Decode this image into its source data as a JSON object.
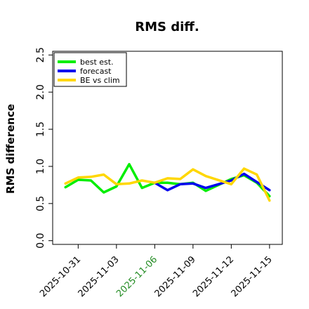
{
  "chart_data": {
    "type": "line",
    "title": "RMS diff.",
    "ylabel": "RMS difference",
    "xlabel": "",
    "ylim": [
      0,
      2.5
    ],
    "xlim": [
      "2025-10-29",
      "2025-11-16"
    ],
    "yticks": [
      "0.0",
      "0.5",
      "1.0",
      "1.5",
      "2.0",
      "2.5"
    ],
    "xticks": [
      {
        "label": "2025-10-31",
        "date": "2025-10-31",
        "color": "#000000"
      },
      {
        "label": "2025-11-03",
        "date": "2025-11-03",
        "color": "#000000"
      },
      {
        "label": "2025-11-06",
        "date": "2025-11-06",
        "color": "#228B22"
      },
      {
        "label": "2025-11-09",
        "date": "2025-11-09",
        "color": "#000000"
      },
      {
        "label": "2025-11-12",
        "date": "2025-11-12",
        "color": "#000000"
      },
      {
        "label": "2025-11-15",
        "date": "2025-11-15",
        "color": "#000000"
      }
    ],
    "grid": false,
    "legend_position": "top-left",
    "series": [
      {
        "name": "best est.",
        "color": "#00EE00",
        "points": [
          {
            "x": "2025-10-30",
            "y": 0.72
          },
          {
            "x": "2025-10-31",
            "y": 0.82
          },
          {
            "x": "2025-11-01",
            "y": 0.81
          },
          {
            "x": "2025-11-02",
            "y": 0.65
          },
          {
            "x": "2025-11-03",
            "y": 0.73
          },
          {
            "x": "2025-11-04",
            "y": 1.03
          },
          {
            "x": "2025-11-05",
            "y": 0.71
          },
          {
            "x": "2025-11-06",
            "y": 0.78
          },
          {
            "x": "2025-11-07",
            "y": 0.78
          },
          {
            "x": "2025-11-08",
            "y": 0.76
          },
          {
            "x": "2025-11-09",
            "y": 0.78
          },
          {
            "x": "2025-11-10",
            "y": 0.67
          },
          {
            "x": "2025-11-12",
            "y": 0.83
          },
          {
            "x": "2025-11-13",
            "y": 0.88
          },
          {
            "x": "2025-11-14",
            "y": 0.78
          },
          {
            "x": "2025-11-15",
            "y": 0.6
          }
        ]
      },
      {
        "name": "forecast",
        "color": "#0000EE",
        "points": [
          {
            "x": "2025-11-06",
            "y": 0.78
          },
          {
            "x": "2025-11-07",
            "y": 0.68
          },
          {
            "x": "2025-11-08",
            "y": 0.76
          },
          {
            "x": "2025-11-09",
            "y": 0.77
          },
          {
            "x": "2025-11-10",
            "y": 0.71
          },
          {
            "x": "2025-11-12",
            "y": 0.81
          },
          {
            "x": "2025-11-13",
            "y": 0.9
          },
          {
            "x": "2025-11-14",
            "y": 0.79
          },
          {
            "x": "2025-11-15",
            "y": 0.68
          }
        ]
      },
      {
        "name": "BE vs clim",
        "color": "#FFD700",
        "points": [
          {
            "x": "2025-10-30",
            "y": 0.77
          },
          {
            "x": "2025-10-31",
            "y": 0.85
          },
          {
            "x": "2025-11-01",
            "y": 0.86
          },
          {
            "x": "2025-11-02",
            "y": 0.89
          },
          {
            "x": "2025-11-03",
            "y": 0.76
          },
          {
            "x": "2025-11-04",
            "y": 0.77
          },
          {
            "x": "2025-11-05",
            "y": 0.81
          },
          {
            "x": "2025-11-06",
            "y": 0.78
          },
          {
            "x": "2025-11-07",
            "y": 0.84
          },
          {
            "x": "2025-11-08",
            "y": 0.83
          },
          {
            "x": "2025-11-09",
            "y": 0.96
          },
          {
            "x": "2025-11-10",
            "y": 0.87
          },
          {
            "x": "2025-11-12",
            "y": 0.76
          },
          {
            "x": "2025-11-13",
            "y": 0.97
          },
          {
            "x": "2025-11-14",
            "y": 0.89
          },
          {
            "x": "2025-11-15",
            "y": 0.54
          }
        ]
      }
    ]
  }
}
